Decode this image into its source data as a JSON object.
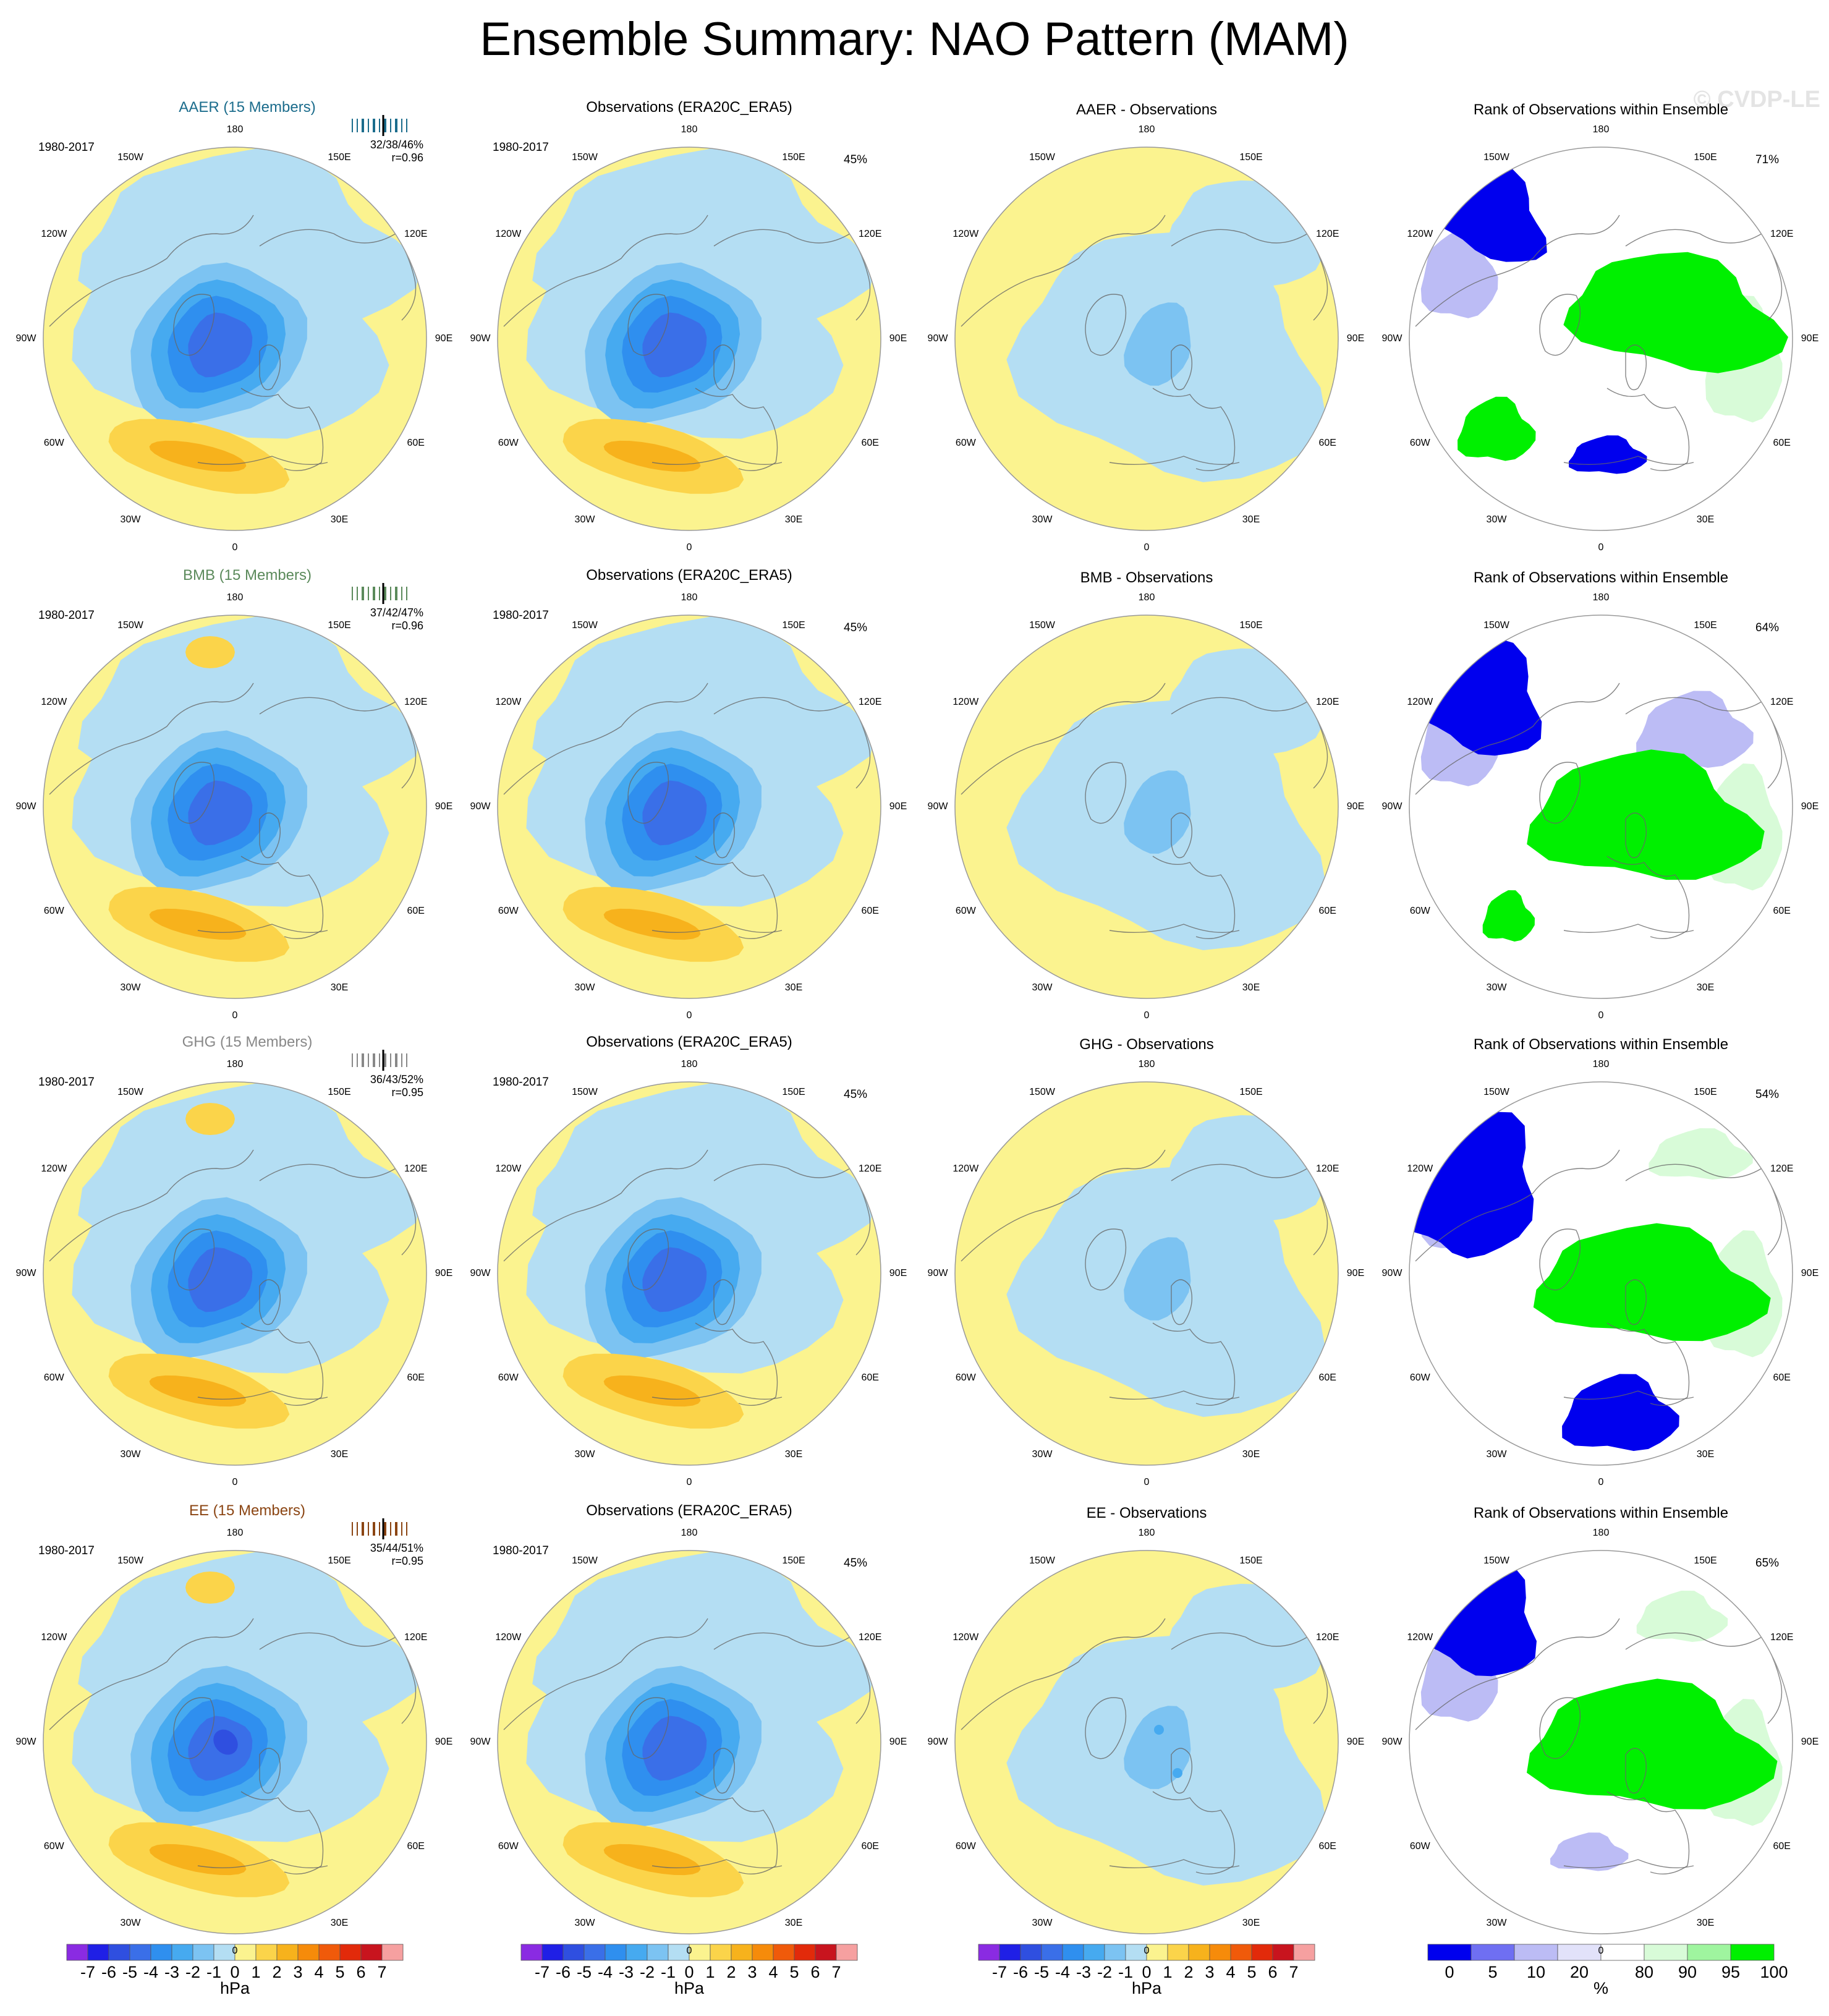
{
  "title": "Ensemble Summary: NAO Pattern (MAM)",
  "copyright": "© CVDP-LE",
  "period": "1980-2017",
  "colors": {
    "AAER": "#1b6c8c",
    "BMB": "#5b8a5b",
    "GHG": "#888888",
    "EE": "#8b4513",
    "ocean_pos": "#fbf38f",
    "land_neg": "#b4def3"
  },
  "longitude_labels": {
    "l180": "180",
    "l150w": "150W",
    "l150e": "150E",
    "l120w": "120W",
    "l120e": "120E",
    "l90w": "90W",
    "l90e": "90E",
    "l60w": "60W",
    "l60e": "60E",
    "l30w": "30W",
    "l30e": "30E",
    "l0": "0"
  },
  "rows": [
    {
      "ensemble_title": "AAER (15 Members)",
      "stats_line1": "32/38/46%",
      "stats_line2": "r=0.96",
      "obs_title": "Observations (ERA20C_ERA5)",
      "obs_pct": "45%",
      "diff_title": "AAER - Observations",
      "rank_title": "Rank of Observations within Ensemble",
      "rank_pct": "71%"
    },
    {
      "ensemble_title": "BMB (15 Members)",
      "stats_line1": "37/42/47%",
      "stats_line2": "r=0.96",
      "obs_title": "Observations (ERA20C_ERA5)",
      "obs_pct": "45%",
      "diff_title": "BMB - Observations",
      "rank_title": "Rank of Observations within Ensemble",
      "rank_pct": "64%"
    },
    {
      "ensemble_title": "GHG (15 Members)",
      "stats_line1": "36/43/52%",
      "stats_line2": "r=0.95",
      "obs_title": "Observations (ERA20C_ERA5)",
      "obs_pct": "45%",
      "diff_title": "GHG - Observations",
      "rank_title": "Rank of Observations within Ensemble",
      "rank_pct": "54%"
    },
    {
      "ensemble_title": "EE (15 Members)",
      "stats_line1": "35/44/51%",
      "stats_line2": "r=0.95",
      "obs_title": "Observations (ERA20C_ERA5)",
      "obs_pct": "45%",
      "diff_title": "EE - Observations",
      "rank_title": "Rank of Observations within Ensemble",
      "rank_pct": "65%"
    }
  ],
  "colorbar_hpa": {
    "labels": [
      "-7",
      "-6",
      "-5",
      "-4",
      "-3",
      "-2",
      "-1",
      "0",
      "1",
      "2",
      "3",
      "4",
      "5",
      "6",
      "7"
    ],
    "unit": "hPa",
    "colors": [
      "#8a2be2",
      "#1f1fe6",
      "#2f4fe0",
      "#3a6fe8",
      "#2f8fef",
      "#46aaf0",
      "#7cc3f2",
      "#b4def3",
      "#fbf38f",
      "#fbd44a",
      "#f7b21c",
      "#f68b0a",
      "#f05a0a",
      "#e22a0a",
      "#c8141e",
      "#f6a0a0"
    ]
  },
  "colorbar_rank": {
    "labels": [
      "0",
      "5",
      "10",
      "20",
      "80",
      "90",
      "95",
      "100"
    ],
    "unit": "%",
    "colors": [
      "#0000ee",
      "#6f6ff2",
      "#bcbcf5",
      "#e2e2fa",
      "#ffffff",
      "#d8fbd8",
      "#9ff59f",
      "#00f000"
    ]
  }
}
